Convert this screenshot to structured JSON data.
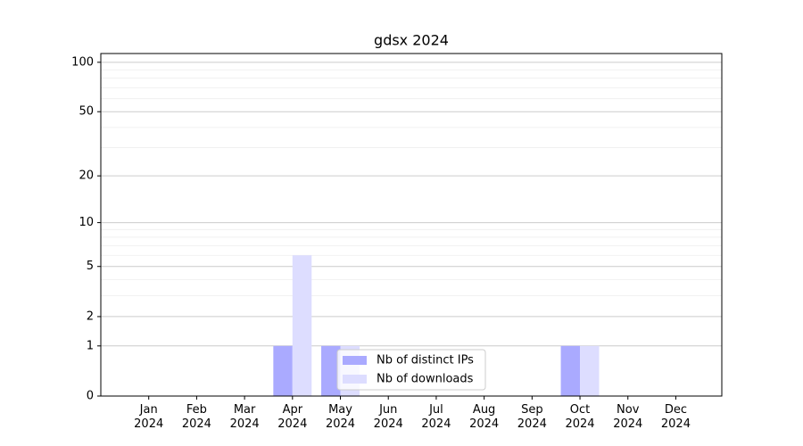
{
  "chart_data": {
    "type": "bar",
    "title": "gdsx 2024",
    "categories": [
      "Jan 2024",
      "Feb 2024",
      "Mar 2024",
      "Apr 2024",
      "May 2024",
      "Jun 2024",
      "Jul 2024",
      "Aug 2024",
      "Sep 2024",
      "Oct 2024",
      "Nov 2024",
      "Dec 2024"
    ],
    "series": [
      {
        "name": "Nb of distinct IPs",
        "color": "#aaaaff",
        "values": [
          0,
          0,
          0,
          1,
          1,
          0,
          0,
          0,
          0,
          1,
          0,
          0
        ]
      },
      {
        "name": "Nb of downloads",
        "color": "#ddddff",
        "values": [
          0,
          0,
          0,
          6,
          1,
          0,
          0,
          0,
          0,
          1,
          0,
          0
        ]
      }
    ],
    "yscale": "log1p",
    "ylim": [
      0,
      113
    ],
    "yticks": [
      0,
      1,
      2,
      5,
      10,
      20,
      50,
      100
    ],
    "minor_yticks": [
      3,
      4,
      6,
      7,
      8,
      9,
      30,
      40,
      60,
      70,
      80,
      90
    ],
    "grid": true,
    "legend": "lower center"
  }
}
